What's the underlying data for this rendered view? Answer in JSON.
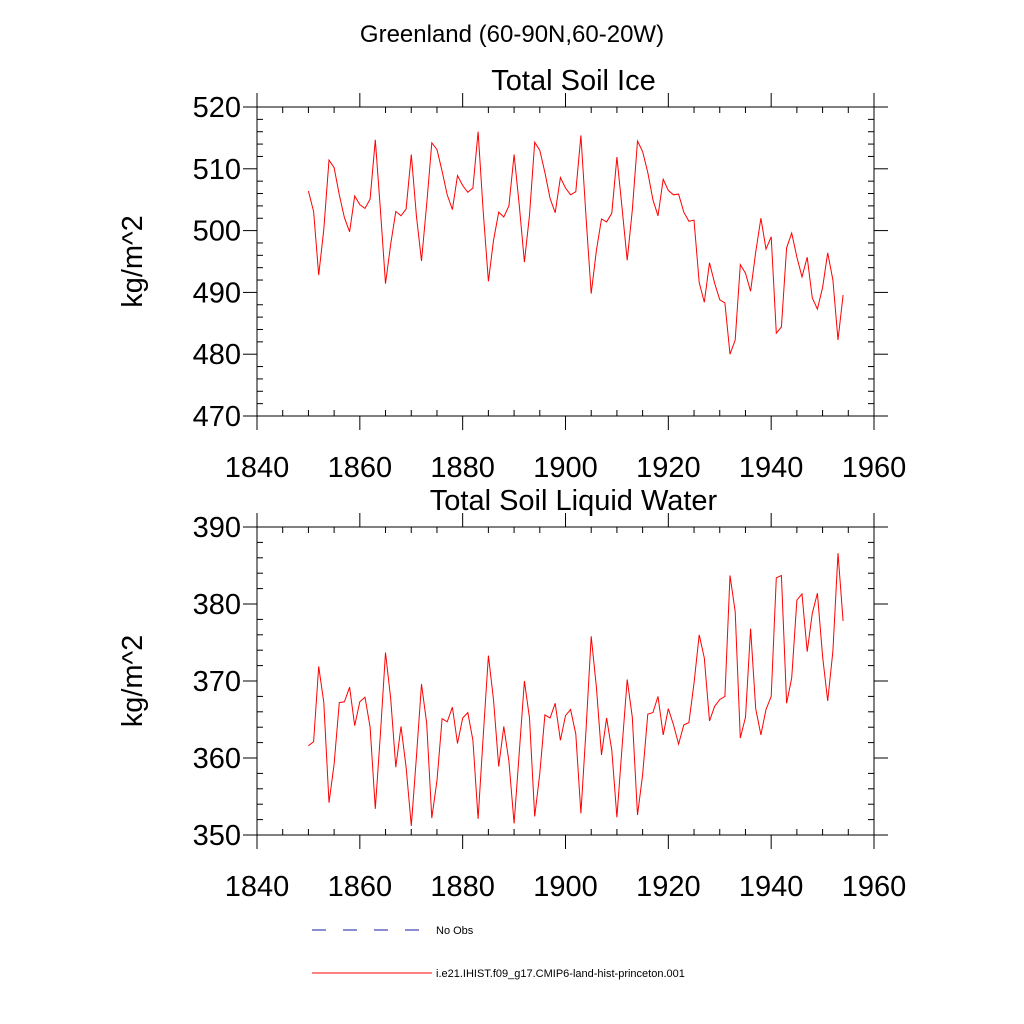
{
  "page_title": "Greenland (60-90N,60-20W)",
  "colors": {
    "model_line": "#ff0000",
    "obs_line": "#1a1aa6",
    "axis": "#000000"
  },
  "legend": {
    "items": [
      {
        "label": "No Obs",
        "style": "dashed",
        "color": "#1a1aa6"
      },
      {
        "label": "i.e21.IHIST.f09_g17.CMIP6-land-hist-princeton.001",
        "style": "solid",
        "color": "#ff0000"
      }
    ]
  },
  "chart_data": [
    {
      "type": "line",
      "title": "Total Soil Ice",
      "ylabel": "kg/m^2",
      "xlabel": "",
      "xlim": [
        1840,
        1960
      ],
      "ylim": [
        470,
        520
      ],
      "xticks": [
        1840,
        1860,
        1880,
        1900,
        1920,
        1940,
        1960
      ],
      "yticks": [
        470,
        480,
        490,
        500,
        510,
        520
      ],
      "grid": false,
      "series": [
        {
          "name": "i.e21.IHIST.f09_g17.CMIP6-land-hist-princeton.001",
          "color": "#ff0000",
          "x": [
            1850,
            1851,
            1852,
            1853,
            1854,
            1855,
            1856,
            1857,
            1858,
            1859,
            1860,
            1861,
            1862,
            1863,
            1864,
            1865,
            1866,
            1867,
            1868,
            1869,
            1870,
            1871,
            1872,
            1873,
            1874,
            1875,
            1876,
            1877,
            1878,
            1879,
            1880,
            1881,
            1882,
            1883,
            1884,
            1885,
            1886,
            1887,
            1888,
            1889,
            1890,
            1891,
            1892,
            1893,
            1894,
            1895,
            1896,
            1897,
            1898,
            1899,
            1900,
            1901,
            1902,
            1903,
            1904,
            1905,
            1906,
            1907,
            1908,
            1909,
            1910,
            1911,
            1912,
            1913,
            1914,
            1915,
            1916,
            1917,
            1918,
            1919,
            1920,
            1921,
            1922,
            1923,
            1924,
            1925,
            1926,
            1927,
            1928,
            1929,
            1930,
            1931,
            1932,
            1933,
            1934,
            1935,
            1936,
            1937,
            1938,
            1939,
            1940,
            1941,
            1942,
            1943,
            1944,
            1945,
            1946,
            1947,
            1948,
            1949,
            1950,
            1951,
            1952,
            1953,
            1954
          ],
          "values": [
            506.4,
            503.1,
            492.8,
            500.2,
            511.4,
            510.2,
            505.8,
            502.1,
            499.8,
            505.6,
            504.2,
            503.6,
            505.1,
            514.7,
            503.4,
            491.4,
            497.8,
            503.1,
            502.4,
            503.5,
            512.3,
            502.4,
            495.1,
            504.3,
            514.2,
            513.1,
            509.6,
            505.8,
            503.4,
            508.9,
            507.3,
            506.2,
            506.9,
            516.0,
            503.1,
            491.8,
            498.4,
            503.0,
            502.2,
            504.0,
            512.3,
            504.2,
            494.9,
            502.5,
            514.3,
            513.0,
            509.4,
            505.2,
            502.9,
            508.6,
            506.9,
            505.8,
            506.3,
            515.4,
            502.0,
            489.8,
            496.8,
            501.9,
            501.4,
            502.8,
            511.9,
            503.6,
            495.2,
            503.3,
            514.5,
            512.8,
            509.4,
            505.0,
            502.4,
            508.3,
            506.5,
            505.8,
            505.9,
            503.0,
            501.5,
            501.7,
            491.6,
            488.4,
            494.8,
            491.5,
            488.8,
            488.3,
            480.0,
            482.3,
            494.5,
            493.1,
            490.2,
            496.5,
            502.0,
            497.0,
            499.0,
            483.4,
            484.4,
            497.2,
            499.6,
            495.7,
            492.5,
            495.7,
            489.1,
            487.3,
            490.8,
            496.4,
            492.0,
            482.3,
            489.6
          ]
        }
      ]
    },
    {
      "type": "line",
      "title": "Total Soil Liquid Water",
      "ylabel": "kg/m^2",
      "xlabel": "",
      "xlim": [
        1840,
        1960
      ],
      "ylim": [
        350,
        390
      ],
      "xticks": [
        1840,
        1860,
        1880,
        1900,
        1920,
        1940,
        1960
      ],
      "yticks": [
        350,
        360,
        370,
        380,
        390
      ],
      "grid": false,
      "series": [
        {
          "name": "i.e21.IHIST.f09_g17.CMIP6-land-hist-princeton.001",
          "color": "#ff0000",
          "x": [
            1850,
            1851,
            1852,
            1853,
            1854,
            1855,
            1856,
            1857,
            1858,
            1859,
            1860,
            1861,
            1862,
            1863,
            1864,
            1865,
            1866,
            1867,
            1868,
            1869,
            1870,
            1871,
            1872,
            1873,
            1874,
            1875,
            1876,
            1877,
            1878,
            1879,
            1880,
            1881,
            1882,
            1883,
            1884,
            1885,
            1886,
            1887,
            1888,
            1889,
            1890,
            1891,
            1892,
            1893,
            1894,
            1895,
            1896,
            1897,
            1898,
            1899,
            1900,
            1901,
            1902,
            1903,
            1904,
            1905,
            1906,
            1907,
            1908,
            1909,
            1910,
            1911,
            1912,
            1913,
            1914,
            1915,
            1916,
            1917,
            1918,
            1919,
            1920,
            1921,
            1922,
            1923,
            1924,
            1925,
            1926,
            1927,
            1928,
            1929,
            1930,
            1931,
            1932,
            1933,
            1934,
            1935,
            1936,
            1937,
            1938,
            1939,
            1940,
            1941,
            1942,
            1943,
            1944,
            1945,
            1946,
            1947,
            1948,
            1949,
            1950,
            1951,
            1952,
            1953,
            1954
          ],
          "values": [
            361.6,
            362.1,
            371.9,
            367.2,
            354.2,
            359.2,
            367.2,
            367.3,
            369.2,
            364.2,
            367.3,
            367.9,
            364.0,
            353.4,
            363.1,
            373.7,
            367.7,
            358.8,
            364.1,
            358.8,
            351.2,
            360.1,
            369.6,
            364.5,
            352.2,
            357.1,
            365.1,
            364.7,
            366.6,
            361.9,
            365.2,
            365.9,
            362.3,
            352.1,
            362.8,
            373.3,
            367.6,
            358.9,
            364.1,
            359.6,
            351.5,
            360.6,
            370.0,
            365.2,
            352.4,
            358.0,
            365.6,
            365.2,
            367.1,
            362.3,
            365.5,
            366.3,
            363.1,
            352.8,
            363.8,
            375.8,
            369.2,
            360.4,
            365.2,
            361.0,
            352.3,
            361.5,
            370.2,
            365.3,
            352.6,
            357.8,
            365.7,
            365.9,
            368.0,
            363.0,
            366.4,
            364.3,
            361.8,
            364.3,
            364.6,
            369.7,
            376.0,
            373.0,
            364.8,
            366.7,
            367.6,
            368.0,
            383.7,
            379.0,
            362.6,
            365.3,
            376.8,
            366.4,
            363.0,
            366.3,
            368.0,
            383.4,
            383.7,
            367.1,
            370.4,
            380.5,
            381.3,
            373.8,
            378.8,
            381.4,
            373.2,
            367.4,
            373.9,
            386.6,
            377.8
          ]
        }
      ]
    }
  ]
}
